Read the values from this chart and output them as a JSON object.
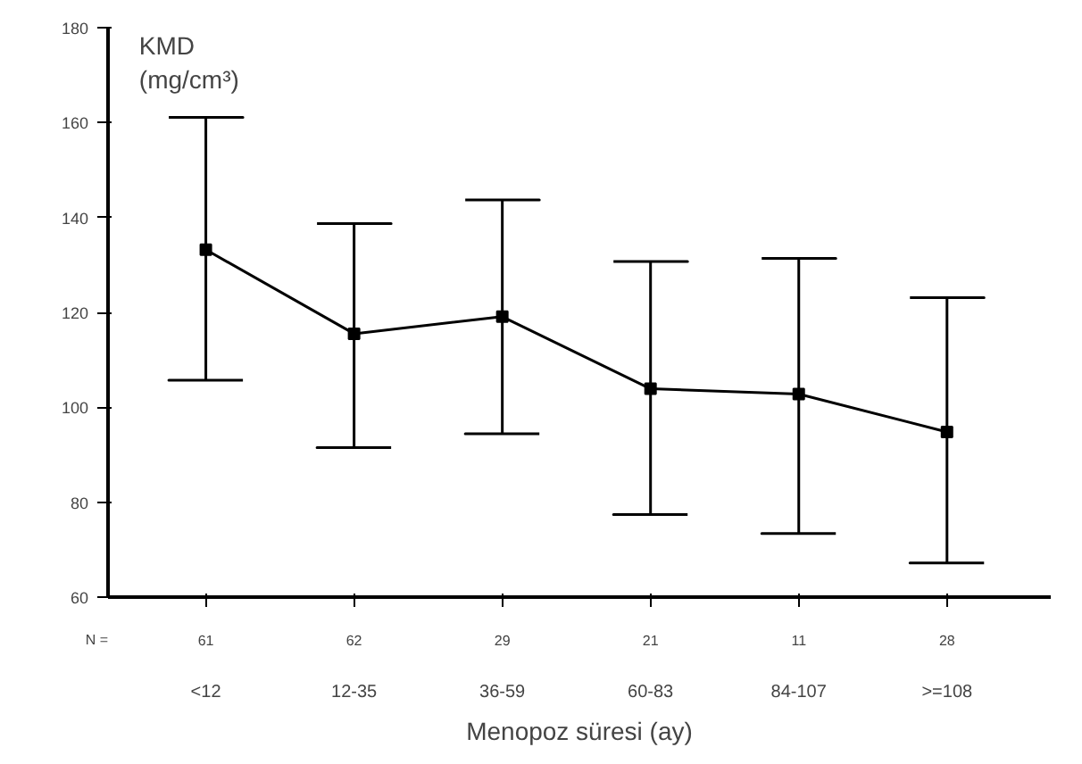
{
  "chart_data": {
    "type": "line",
    "xlabel": "Menopoz süresi (ay)",
    "ylabel": "KMD\n(mg/cm³)",
    "categories": [
      "<12",
      "12-35",
      "36-59",
      "60-83",
      "84-107",
      ">=108"
    ],
    "color": "#000000",
    "values": [
      133.2,
      115.5,
      119.1,
      103.9,
      102.8,
      94.8
    ],
    "errors": [
      [
        105.7,
        161.1
      ],
      [
        91.5,
        138.7
      ],
      [
        94.4,
        143.7
      ],
      [
        77.4,
        130.7
      ],
      [
        73.4,
        131.4
      ],
      [
        67.2,
        123.1
      ]
    ],
    "ylim": [
      60,
      180
    ],
    "yticks": [
      60,
      80,
      100,
      120,
      140,
      160,
      180
    ],
    "annotations": [
      "N =",
      "61",
      "62",
      "29",
      "21",
      "11",
      "28"
    ],
    "marker": "square",
    "line_style": "solid",
    "grid": false
  }
}
